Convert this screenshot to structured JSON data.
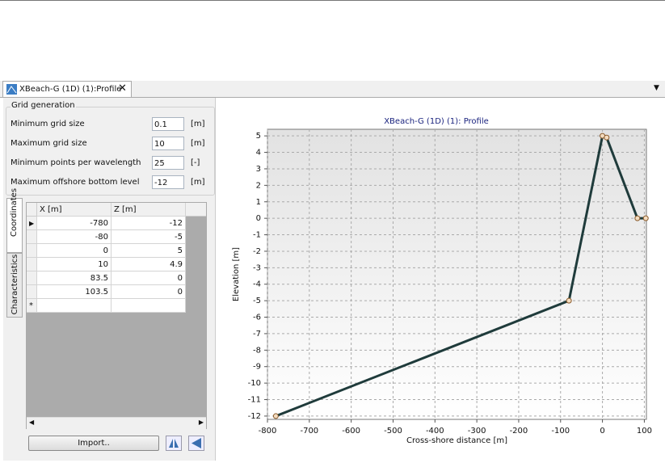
{
  "tab": {
    "title": "XBeach-G (1D) (1):Profile"
  },
  "grid_generation": {
    "title": "Grid generation",
    "fields": [
      {
        "label": "Minimum grid size",
        "value": "0.1",
        "unit": "[m]"
      },
      {
        "label": "Maximum grid size",
        "value": "10",
        "unit": "[m]"
      },
      {
        "label": "Minimum points per wavelength",
        "value": "25",
        "unit": "[-]"
      },
      {
        "label": "Maximum offshore bottom level",
        "value": "-12",
        "unit": "[m]"
      }
    ]
  },
  "side_tabs": [
    "Coordinates",
    "Characteristics"
  ],
  "table": {
    "columns": [
      "X [m]",
      "Z [m]"
    ],
    "rows": [
      [
        "-780",
        "-12"
      ],
      [
        "-80",
        "-5"
      ],
      [
        "0",
        "5"
      ],
      [
        "10",
        "4.9"
      ],
      [
        "83.5",
        "0"
      ],
      [
        "103.5",
        "0"
      ]
    ],
    "new_row_marker": "*"
  },
  "buttons": {
    "import": "Import.."
  },
  "chart_data": {
    "type": "line",
    "title": "XBeach-G (1D) (1): Profile",
    "x_label": "Cross-shore distance [m]",
    "y_label": "Elevation [m]",
    "x": [
      -780,
      -80,
      0,
      10,
      83.5,
      103.5
    ],
    "y": [
      -12,
      -5,
      5,
      4.9,
      0,
      0
    ],
    "color": "#1f3b3b",
    "marker_color": "#f3dcc0",
    "xlim": [
      -800,
      105
    ],
    "ylim": [
      -12.2,
      5.4
    ],
    "xticks": [
      -800,
      -700,
      -600,
      -500,
      -400,
      -300,
      -200,
      -100,
      0,
      100
    ],
    "yticks": [
      -12,
      -11,
      -10,
      -9,
      -8,
      -7,
      -6,
      -5,
      -4,
      -3,
      -2,
      -1,
      0,
      1,
      2,
      3,
      4,
      5
    ],
    "grid": true
  }
}
